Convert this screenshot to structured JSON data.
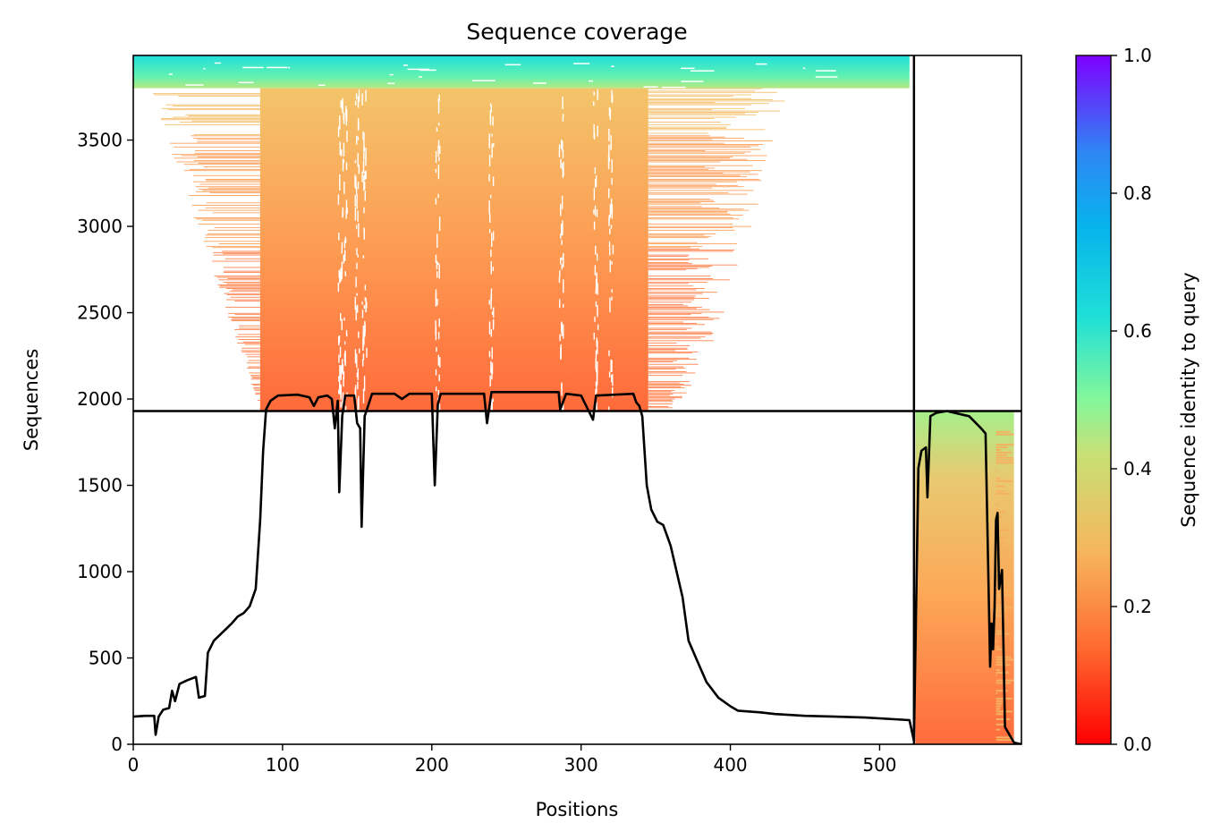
{
  "chart_data": {
    "type": "heatmap",
    "title": "Sequence coverage",
    "xlabel": "Positions",
    "ylabel": "Sequences",
    "xlim": [
      0,
      595
    ],
    "ylim": [
      0,
      3990
    ],
    "x_ticks": [
      0,
      100,
      200,
      300,
      400,
      500
    ],
    "y_ticks": [
      0,
      500,
      1000,
      1500,
      2000,
      2500,
      3000,
      3500
    ],
    "grid": false,
    "segment_boundary_x": 523,
    "segment_boundary_y": 1930,
    "colorbar": {
      "label": "Sequence identity to query",
      "range": [
        0,
        1
      ],
      "ticks": [
        "0.0",
        "0.2",
        "0.4",
        "0.6",
        "0.8",
        "1.0"
      ],
      "colormap": [
        "#ff0000",
        "#ff7f3f",
        "#f5c06a",
        "#9ef08a",
        "#1fe0d8",
        "#0aa6f0",
        "#3a64f5",
        "#7f00ff"
      ]
    },
    "coverage_blocks": [
      {
        "name": "block-1-top",
        "x": [
          0,
          520
        ],
        "y": [
          3800,
          3990
        ],
        "identity": 0.58
      },
      {
        "name": "block-1-body",
        "x": [
          85,
          345
        ],
        "y": [
          1930,
          3800
        ],
        "identity": 0.2
      },
      {
        "name": "block-2",
        "x": [
          524,
          590
        ],
        "y": [
          0,
          1930
        ],
        "identity": 0.3
      }
    ],
    "coverage_line": {
      "name": "coverage",
      "points": [
        [
          0,
          160
        ],
        [
          8,
          165
        ],
        [
          14,
          165
        ],
        [
          15,
          55
        ],
        [
          17,
          160
        ],
        [
          20,
          200
        ],
        [
          24,
          210
        ],
        [
          26,
          310
        ],
        [
          28,
          250
        ],
        [
          31,
          350
        ],
        [
          36,
          370
        ],
        [
          42,
          390
        ],
        [
          44,
          270
        ],
        [
          48,
          280
        ],
        [
          50,
          530
        ],
        [
          54,
          600
        ],
        [
          60,
          650
        ],
        [
          66,
          700
        ],
        [
          70,
          740
        ],
        [
          74,
          760
        ],
        [
          78,
          800
        ],
        [
          82,
          900
        ],
        [
          85,
          1300
        ],
        [
          87,
          1700
        ],
        [
          89,
          1940
        ],
        [
          92,
          1990
        ],
        [
          97,
          2020
        ],
        [
          110,
          2025
        ],
        [
          118,
          2010
        ],
        [
          121,
          1960
        ],
        [
          124,
          2010
        ],
        [
          130,
          2020
        ],
        [
          133,
          2000
        ],
        [
          135,
          1830
        ],
        [
          137,
          1990
        ],
        [
          138,
          1460
        ],
        [
          140,
          1900
        ],
        [
          142,
          2020
        ],
        [
          148,
          2020
        ],
        [
          150,
          1860
        ],
        [
          152,
          1830
        ],
        [
          153,
          1260
        ],
        [
          155,
          1900
        ],
        [
          160,
          2030
        ],
        [
          175,
          2030
        ],
        [
          180,
          2000
        ],
        [
          185,
          2030
        ],
        [
          200,
          2030
        ],
        [
          201,
          1750
        ],
        [
          202,
          1500
        ],
        [
          204,
          1970
        ],
        [
          206,
          2030
        ],
        [
          235,
          2030
        ],
        [
          237,
          1860
        ],
        [
          240,
          2040
        ],
        [
          270,
          2040
        ],
        [
          285,
          2040
        ],
        [
          286,
          1940
        ],
        [
          290,
          2030
        ],
        [
          300,
          2020
        ],
        [
          308,
          1880
        ],
        [
          310,
          2020
        ],
        [
          335,
          2030
        ],
        [
          337,
          1980
        ],
        [
          339,
          1960
        ],
        [
          341,
          1900
        ],
        [
          344,
          1500
        ],
        [
          347,
          1360
        ],
        [
          351,
          1290
        ],
        [
          355,
          1270
        ],
        [
          360,
          1150
        ],
        [
          364,
          1000
        ],
        [
          368,
          850
        ],
        [
          372,
          600
        ],
        [
          378,
          480
        ],
        [
          384,
          360
        ],
        [
          392,
          270
        ],
        [
          400,
          220
        ],
        [
          405,
          195
        ],
        [
          420,
          185
        ],
        [
          430,
          175
        ],
        [
          450,
          165
        ],
        [
          470,
          160
        ],
        [
          490,
          155
        ],
        [
          510,
          145
        ],
        [
          520,
          140
        ],
        [
          523,
          20
        ],
        [
          526,
          1600
        ],
        [
          528,
          1700
        ],
        [
          531,
          1720
        ],
        [
          532,
          1430
        ],
        [
          534,
          1900
        ],
        [
          538,
          1920
        ],
        [
          545,
          1930
        ],
        [
          560,
          1900
        ],
        [
          568,
          1830
        ],
        [
          571,
          1800
        ],
        [
          573,
          900
        ],
        [
          574,
          450
        ],
        [
          575,
          700
        ],
        [
          576,
          550
        ],
        [
          577,
          800
        ],
        [
          578,
          1300
        ],
        [
          579,
          1340
        ],
        [
          580,
          900
        ],
        [
          582,
          1010
        ],
        [
          584,
          100
        ],
        [
          590,
          10
        ],
        [
          595,
          0
        ]
      ]
    }
  }
}
